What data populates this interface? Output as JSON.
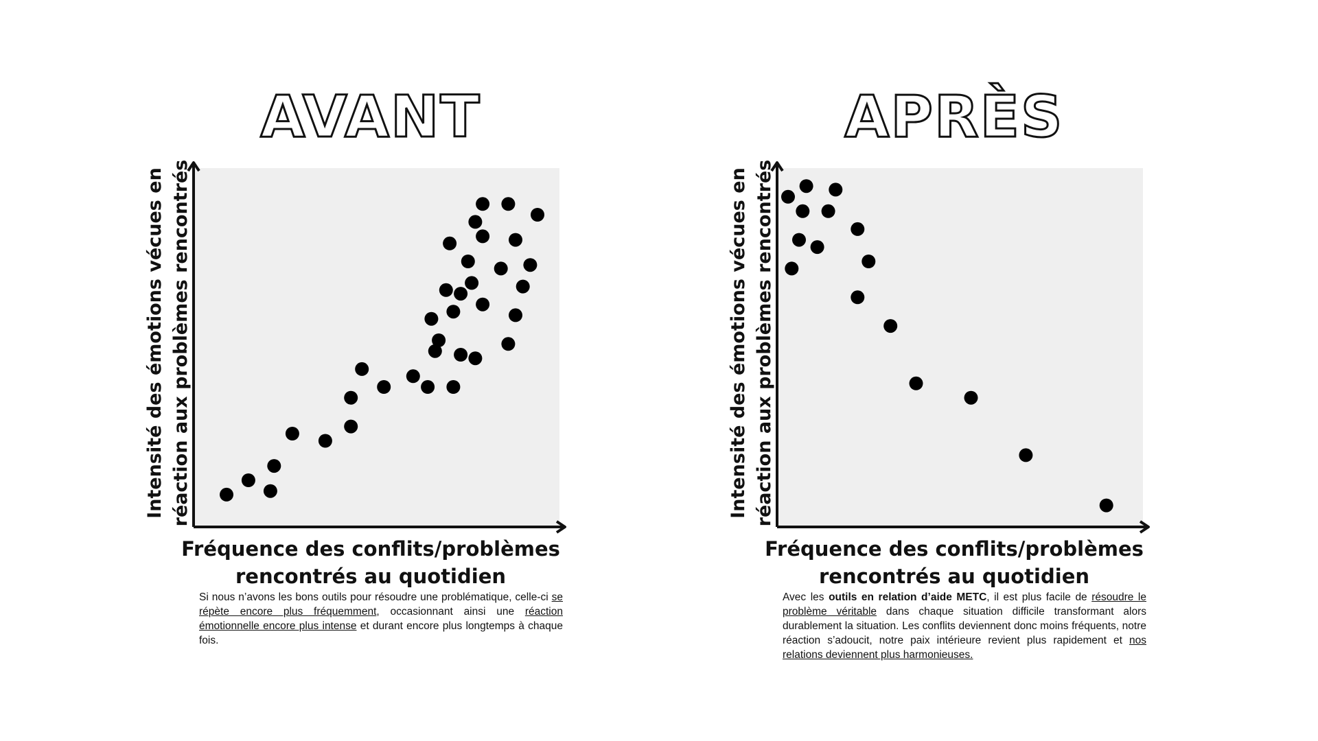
{
  "chart_data": [
    {
      "type": "scatter",
      "title": "AVANT",
      "xlabel": "Fréquence des conflits/problèmes rencontrés au quotidien",
      "ylabel": "Intensité des émotions vécues en réaction aux problèmes rencontrés",
      "xlim": [
        0,
        100
      ],
      "ylim": [
        0,
        100
      ],
      "grid": false,
      "colors": {
        "background": "#efefef",
        "points": "#000000",
        "axes": "#111111"
      },
      "points": [
        {
          "x": 9,
          "y": 9
        },
        {
          "x": 15,
          "y": 13
        },
        {
          "x": 21,
          "y": 10
        },
        {
          "x": 22,
          "y": 17
        },
        {
          "x": 27,
          "y": 26
        },
        {
          "x": 36,
          "y": 24
        },
        {
          "x": 43,
          "y": 28
        },
        {
          "x": 43,
          "y": 36
        },
        {
          "x": 46,
          "y": 44
        },
        {
          "x": 52,
          "y": 39
        },
        {
          "x": 60,
          "y": 42
        },
        {
          "x": 64,
          "y": 39
        },
        {
          "x": 66,
          "y": 49
        },
        {
          "x": 65,
          "y": 58
        },
        {
          "x": 67,
          "y": 52
        },
        {
          "x": 71,
          "y": 39
        },
        {
          "x": 73,
          "y": 48
        },
        {
          "x": 77,
          "y": 47
        },
        {
          "x": 71,
          "y": 60
        },
        {
          "x": 73,
          "y": 65
        },
        {
          "x": 69,
          "y": 66
        },
        {
          "x": 70,
          "y": 79
        },
        {
          "x": 75,
          "y": 74
        },
        {
          "x": 77,
          "y": 85
        },
        {
          "x": 76,
          "y": 68
        },
        {
          "x": 79,
          "y": 62
        },
        {
          "x": 79,
          "y": 81
        },
        {
          "x": 84,
          "y": 72
        },
        {
          "x": 86,
          "y": 51
        },
        {
          "x": 88,
          "y": 59
        },
        {
          "x": 88,
          "y": 80
        },
        {
          "x": 90,
          "y": 67
        },
        {
          "x": 92,
          "y": 73
        },
        {
          "x": 94,
          "y": 87
        },
        {
          "x": 79,
          "y": 90
        },
        {
          "x": 86,
          "y": 90
        }
      ],
      "description_html": "Si nous n’avons les bons outils pour résoudre une problématique, celle-ci <u>se répète encore plus fréquemment</u>, occasionnant ainsi une <u>réaction émotionnelle encore plus intense</u> et durant encore plus longtemps à chaque fois."
    },
    {
      "type": "scatter",
      "title": "APRÈS",
      "xlabel": "Fréquence des conflits/problèmes rencontrés au quotidien",
      "ylabel": "Intensité des émotions vécues en réaction aux problèmes rencontrés",
      "xlim": [
        0,
        100
      ],
      "ylim": [
        0,
        100
      ],
      "grid": false,
      "colors": {
        "background": "#efefef",
        "points": "#000000",
        "axes": "#111111"
      },
      "points": [
        {
          "x": 3,
          "y": 92
        },
        {
          "x": 8,
          "y": 95
        },
        {
          "x": 16,
          "y": 94
        },
        {
          "x": 7,
          "y": 88
        },
        {
          "x": 14,
          "y": 88
        },
        {
          "x": 6,
          "y": 80
        },
        {
          "x": 11,
          "y": 78
        },
        {
          "x": 4,
          "y": 72
        },
        {
          "x": 22,
          "y": 83
        },
        {
          "x": 25,
          "y": 74
        },
        {
          "x": 22,
          "y": 64
        },
        {
          "x": 31,
          "y": 56
        },
        {
          "x": 38,
          "y": 40
        },
        {
          "x": 53,
          "y": 36
        },
        {
          "x": 68,
          "y": 20
        },
        {
          "x": 90,
          "y": 6
        }
      ],
      "description_html": "Avec les <b>outils en relation d’aide METC</b>, il est plus facile de <u>résoudre le problème véritable</u> dans chaque situation difficile transformant alors durablement la situation. Les conflits deviennent donc moins fréquents, notre réaction s’adoucit, notre paix intérieure revient plus rapidement et <u>nos relations deviennent plus harmonieuses.</u>"
    }
  ]
}
